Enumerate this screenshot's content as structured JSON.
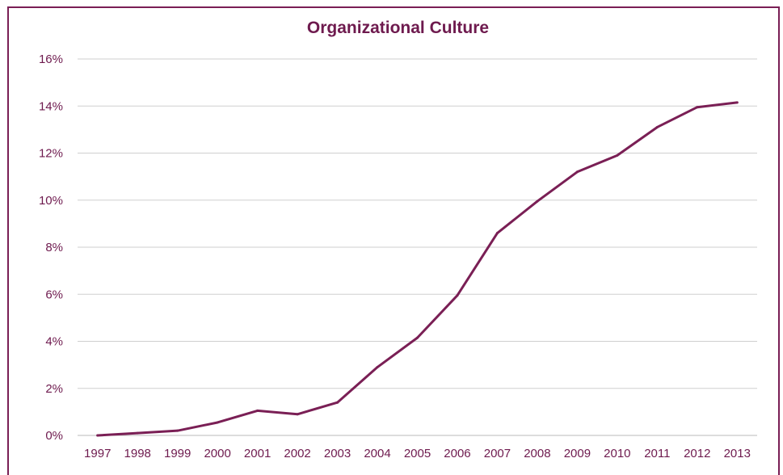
{
  "chart_data": {
    "type": "line",
    "title": "Organizational Culture",
    "xlabel": "",
    "ylabel": "",
    "x": [
      "1997",
      "1998",
      "1999",
      "2000",
      "2001",
      "2002",
      "2003",
      "2004",
      "2005",
      "2006",
      "2007",
      "2008",
      "2009",
      "2010",
      "2011",
      "2012",
      "2013"
    ],
    "series": [
      {
        "values": [
          0.0,
          0.1,
          0.2,
          0.55,
          1.05,
          0.9,
          1.4,
          2.9,
          4.15,
          5.95,
          8.6,
          9.95,
          11.2,
          11.9,
          13.1,
          13.95,
          14.15
        ]
      }
    ],
    "ylim": [
      0,
      16
    ],
    "yticks": [
      "0%",
      "2%",
      "4%",
      "6%",
      "8%",
      "10%",
      "12%",
      "14%",
      "16%"
    ],
    "grid": true,
    "line_color": "#7a1f55",
    "text_color": "#6e1a4e",
    "grid_color": "#cfcfcf"
  }
}
